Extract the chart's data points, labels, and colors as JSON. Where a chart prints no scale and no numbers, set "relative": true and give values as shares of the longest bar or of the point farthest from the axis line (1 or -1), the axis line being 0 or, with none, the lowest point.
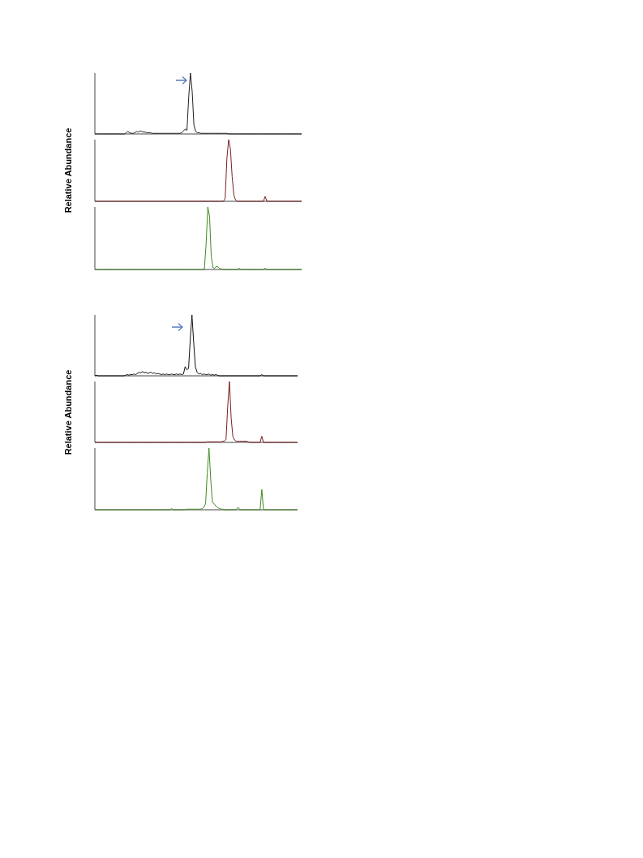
{
  "chart_data": [
    {
      "type": "line",
      "relative": true,
      "legend": false,
      "tick_labels": false,
      "categories": [
        null,
        null,
        null,
        null,
        null,
        null,
        null,
        null,
        null,
        null,
        null,
        null,
        null,
        null,
        null,
        null,
        null,
        null,
        null,
        null,
        null,
        null,
        null,
        null,
        null,
        null,
        null,
        null,
        null,
        null,
        null,
        null,
        null,
        null,
        null,
        null,
        null,
        null,
        null,
        null,
        null,
        null,
        null,
        null,
        null,
        null,
        null,
        null,
        null,
        null,
        null,
        null,
        null,
        null,
        null,
        null,
        null,
        null,
        null,
        null,
        null,
        null,
        null,
        null,
        null,
        null,
        null,
        null,
        null,
        null,
        null,
        null,
        null,
        null,
        null,
        null,
        null,
        null,
        null,
        null,
        null,
        null,
        null,
        null,
        null,
        null,
        null,
        null,
        null,
        null,
        null,
        null,
        null,
        null,
        null,
        null,
        null,
        null,
        null,
        null,
        null,
        null,
        null,
        null,
        null,
        null,
        null,
        null,
        null,
        null,
        null,
        null,
        null,
        null,
        null,
        null,
        null,
        null,
        null,
        null
      ],
      "series": [
        {
          "color": "#222222",
          "values": [
            0,
            0,
            0,
            0,
            0,
            0,
            0,
            0,
            0,
            0,
            0,
            0,
            0,
            0,
            0,
            0,
            0,
            0,
            0.02,
            0.04,
            0.02,
            0.01,
            0.01,
            0.02,
            0.04,
            0.03,
            0.05,
            0.04,
            0.03,
            0.03,
            0.02,
            0.02,
            0.02,
            0.01,
            0.01,
            0.01,
            0.01,
            0.01,
            0.01,
            0.01,
            0.01,
            0.01,
            0.01,
            0.01,
            0.01,
            0.01,
            0.01,
            0.01,
            0.01,
            0.01,
            0.02,
            0.05,
            0.08,
            0.06,
            0.6,
            1,
            0.7,
            0.15,
            0.04,
            0.02,
            0.02,
            0.01,
            0.01,
            0.01,
            0.01,
            0.01,
            0.01,
            0.01,
            0.01,
            0.01,
            0.01,
            0.01,
            0.01,
            0.01,
            0.01,
            0.01,
            0.01,
            0,
            0,
            0,
            0,
            0,
            0,
            0,
            0,
            0,
            0,
            0,
            0,
            0,
            0,
            0,
            0,
            0,
            0,
            0,
            0,
            0,
            0,
            0,
            0,
            0,
            0,
            0,
            0,
            0,
            0,
            0,
            0,
            0,
            0,
            0,
            0,
            0,
            0,
            0,
            0,
            0,
            0,
            0
          ]
        }
      ]
    },
    {
      "type": "line",
      "relative": true,
      "legend": false,
      "tick_labels": false,
      "ylabel": "Relative Abundance",
      "categories": [
        null,
        null,
        null,
        null,
        null,
        null,
        null,
        null,
        null,
        null,
        null,
        null,
        null,
        null,
        null,
        null,
        null,
        null,
        null,
        null,
        null,
        null,
        null,
        null,
        null,
        null,
        null,
        null,
        null,
        null,
        null,
        null,
        null,
        null,
        null,
        null,
        null,
        null,
        null,
        null,
        null,
        null,
        null,
        null,
        null,
        null,
        null,
        null,
        null,
        null,
        null,
        null,
        null,
        null,
        null,
        null,
        null,
        null,
        null,
        null,
        null,
        null,
        null,
        null,
        null,
        null,
        null,
        null,
        null,
        null,
        null,
        null,
        null,
        null,
        null,
        null,
        null,
        null,
        null,
        null,
        null,
        null,
        null,
        null,
        null,
        null,
        null,
        null,
        null,
        null,
        null,
        null,
        null,
        null,
        null,
        null,
        null,
        null,
        null,
        null,
        null,
        null,
        null,
        null,
        null,
        null,
        null,
        null,
        null,
        null,
        null,
        null,
        null,
        null,
        null,
        null,
        null,
        null,
        null,
        null
      ],
      "series": [
        {
          "color": "#7a1f1f",
          "values": [
            0,
            0,
            0,
            0,
            0,
            0,
            0,
            0,
            0,
            0,
            0,
            0,
            0,
            0,
            0,
            0,
            0,
            0,
            0,
            0,
            0,
            0,
            0,
            0,
            0,
            0,
            0,
            0,
            0,
            0,
            0,
            0,
            0,
            0,
            0,
            0,
            0,
            0,
            0,
            0,
            0,
            0,
            0,
            0,
            0,
            0,
            0,
            0,
            0,
            0,
            0,
            0,
            0,
            0,
            0,
            0,
            0,
            0,
            0,
            0,
            0,
            0,
            0,
            0,
            0,
            0,
            0,
            0,
            0,
            0,
            0,
            0,
            0,
            0,
            0,
            0.05,
            0.7,
            1,
            0.85,
            0.4,
            0.1,
            0.02,
            0,
            0,
            0,
            0,
            0,
            0,
            0,
            0,
            0,
            0,
            0,
            0,
            0,
            0,
            0,
            0,
            0.08,
            0,
            0,
            0,
            0,
            0,
            0,
            0,
            0,
            0,
            0,
            0,
            0,
            0,
            0,
            0,
            0,
            0,
            0,
            0,
            0,
            0
          ]
        }
      ]
    },
    {
      "type": "line",
      "relative": true,
      "legend": false,
      "tick_labels": false,
      "categories": [
        null,
        null,
        null,
        null,
        null,
        null,
        null,
        null,
        null,
        null,
        null,
        null,
        null,
        null,
        null,
        null,
        null,
        null,
        null,
        null,
        null,
        null,
        null,
        null,
        null,
        null,
        null,
        null,
        null,
        null,
        null,
        null,
        null,
        null,
        null,
        null,
        null,
        null,
        null,
        null,
        null,
        null,
        null,
        null,
        null,
        null,
        null,
        null,
        null,
        null,
        null,
        null,
        null,
        null,
        null,
        null,
        null,
        null,
        null,
        null,
        null,
        null,
        null,
        null,
        null,
        null,
        null,
        null,
        null,
        null,
        null,
        null,
        null,
        null,
        null,
        null,
        null,
        null,
        null,
        null,
        null,
        null,
        null,
        null,
        null,
        null,
        null,
        null,
        null,
        null,
        null,
        null,
        null,
        null,
        null,
        null,
        null,
        null,
        null,
        null,
        null,
        null,
        null,
        null,
        null,
        null,
        null,
        null,
        null,
        null,
        null,
        null,
        null,
        null,
        null,
        null,
        null,
        null,
        null,
        null
      ],
      "series": [
        {
          "color": "#3f8a1f",
          "values": [
            0,
            0,
            0,
            0,
            0,
            0,
            0,
            0,
            0,
            0,
            0,
            0,
            0,
            0,
            0,
            0,
            0,
            0,
            0,
            0,
            0,
            0,
            0,
            0,
            0,
            0,
            0,
            0,
            0,
            0,
            0,
            0,
            0,
            0,
            0,
            0,
            0,
            0,
            0,
            0,
            0,
            0,
            0,
            0,
            0,
            0,
            0,
            0,
            0,
            0,
            0,
            0,
            0,
            0,
            0,
            0,
            0,
            0,
            0,
            0,
            0,
            0,
            0,
            0,
            0.4,
            1,
            0.85,
            0.2,
            0.03,
            0.02,
            0.05,
            0.04,
            0.01,
            0.01,
            0,
            0,
            0,
            0,
            0,
            0,
            0,
            0,
            0,
            0.02,
            0,
            0,
            0,
            0,
            0,
            0,
            0,
            0,
            0,
            0,
            0,
            0,
            0,
            0,
            0.02,
            0,
            0,
            0,
            0,
            0,
            0,
            0,
            0,
            0,
            0,
            0,
            0,
            0,
            0,
            0,
            0,
            0,
            0,
            0,
            0,
            0
          ]
        }
      ]
    },
    {
      "type": "line",
      "relative": true,
      "legend": false,
      "tick_labels": false,
      "categories": [
        null,
        null,
        null,
        null,
        null,
        null,
        null,
        null,
        null,
        null,
        null,
        null,
        null,
        null,
        null,
        null,
        null,
        null,
        null,
        null,
        null,
        null,
        null,
        null,
        null,
        null,
        null,
        null,
        null,
        null,
        null,
        null,
        null,
        null,
        null,
        null,
        null,
        null,
        null,
        null,
        null,
        null,
        null,
        null,
        null,
        null,
        null,
        null,
        null,
        null,
        null,
        null,
        null,
        null,
        null,
        null,
        null,
        null,
        null,
        null,
        null,
        null,
        null,
        null,
        null,
        null,
        null,
        null,
        null,
        null,
        null,
        null,
        null,
        null,
        null,
        null,
        null,
        null,
        null,
        null,
        null,
        null,
        null,
        null,
        null,
        null,
        null,
        null,
        null,
        null,
        null,
        null,
        null,
        null,
        null,
        null,
        null,
        null,
        null,
        null,
        null,
        null,
        null,
        null,
        null,
        null,
        null,
        null,
        null,
        null,
        null,
        null,
        null,
        null,
        null,
        null,
        null,
        null,
        null,
        null
      ],
      "series": [
        {
          "color": "#111111",
          "values": [
            0,
            0.01,
            0,
            0,
            0,
            0,
            0,
            0,
            0,
            0,
            0,
            0,
            0,
            0,
            0,
            0,
            0,
            0,
            0.01,
            0.02,
            0.01,
            0.02,
            0.02,
            0.03,
            0.02,
            0.04,
            0.06,
            0.05,
            0.07,
            0.05,
            0.06,
            0.04,
            0.05,
            0.06,
            0.04,
            0.05,
            0.03,
            0.04,
            0.03,
            0.02,
            0.03,
            0.02,
            0.03,
            0.02,
            0.02,
            0.03,
            0.02,
            0.02,
            0.03,
            0.02,
            0.03,
            0.02,
            0.03,
            0.15,
            0.1,
            0.12,
            0.6,
            1,
            0.55,
            0.15,
            0.06,
            0.03,
            0.04,
            0.02,
            0.03,
            0.02,
            0.02,
            0.03,
            0.01,
            0.02,
            0.01,
            0.02,
            0.01,
            0,
            0,
            0,
            0,
            0,
            0,
            0,
            0,
            0,
            0,
            0,
            0,
            0,
            0,
            0,
            0,
            0,
            0,
            0,
            0,
            0,
            0,
            0,
            0,
            0,
            0.02,
            0,
            0,
            0,
            0,
            0,
            0,
            0,
            0,
            0,
            0,
            0,
            0,
            0,
            0,
            0,
            0,
            0,
            0,
            0,
            0,
            0
          ]
        }
      ]
    },
    {
      "type": "line",
      "relative": true,
      "legend": false,
      "tick_labels": false,
      "ylabel": "Relative Abundance",
      "categories": [
        null,
        null,
        null,
        null,
        null,
        null,
        null,
        null,
        null,
        null,
        null,
        null,
        null,
        null,
        null,
        null,
        null,
        null,
        null,
        null,
        null,
        null,
        null,
        null,
        null,
        null,
        null,
        null,
        null,
        null,
        null,
        null,
        null,
        null,
        null,
        null,
        null,
        null,
        null,
        null,
        null,
        null,
        null,
        null,
        null,
        null,
        null,
        null,
        null,
        null,
        null,
        null,
        null,
        null,
        null,
        null,
        null,
        null,
        null,
        null,
        null,
        null,
        null,
        null,
        null,
        null,
        null,
        null,
        null,
        null,
        null,
        null,
        null,
        null,
        null,
        null,
        null,
        null,
        null,
        null,
        null,
        null,
        null,
        null,
        null,
        null,
        null,
        null,
        null,
        null,
        null,
        null,
        null,
        null,
        null,
        null,
        null,
        null,
        null,
        null,
        null,
        null,
        null,
        null,
        null,
        null,
        null,
        null,
        null,
        null,
        null,
        null,
        null,
        null,
        null,
        null,
        null,
        null,
        null,
        null
      ],
      "series": [
        {
          "color": "#7a1f1f",
          "values": [
            0,
            0,
            0,
            0,
            0,
            0,
            0,
            0,
            0,
            0,
            0,
            0,
            0,
            0,
            0,
            0,
            0,
            0,
            0,
            0,
            0,
            0,
            0,
            0,
            0,
            0,
            0,
            0,
            0,
            0,
            0,
            0,
            0,
            0,
            0,
            0,
            0,
            0,
            0,
            0,
            0,
            0,
            0,
            0,
            0,
            0,
            0,
            0,
            0,
            0,
            0,
            0,
            0,
            0,
            0,
            0,
            0,
            0,
            0,
            0,
            0,
            0,
            0,
            0,
            0,
            0,
            0.01,
            0.01,
            0.01,
            0.01,
            0.01,
            0.01,
            0.01,
            0.01,
            0.01,
            0.02,
            0.02,
            0.05,
            0.6,
            1,
            0.4,
            0.1,
            0.04,
            0.02,
            0.02,
            0.02,
            0.02,
            0.02,
            0.02,
            0.02,
            0.01,
            0,
            0,
            0,
            0,
            0,
            0,
            0,
            0.1,
            0,
            0,
            0,
            0,
            0,
            0,
            0,
            0,
            0,
            0,
            0,
            0,
            0,
            0,
            0,
            0,
            0,
            0,
            0,
            0,
            0
          ]
        }
      ]
    },
    {
      "type": "line",
      "relative": true,
      "legend": false,
      "tick_labels": false,
      "categories": [
        null,
        null,
        null,
        null,
        null,
        null,
        null,
        null,
        null,
        null,
        null,
        null,
        null,
        null,
        null,
        null,
        null,
        null,
        null,
        null,
        null,
        null,
        null,
        null,
        null,
        null,
        null,
        null,
        null,
        null,
        null,
        null,
        null,
        null,
        null,
        null,
        null,
        null,
        null,
        null,
        null,
        null,
        null,
        null,
        null,
        null,
        null,
        null,
        null,
        null,
        null,
        null,
        null,
        null,
        null,
        null,
        null,
        null,
        null,
        null,
        null,
        null,
        null,
        null,
        null,
        null,
        null,
        null,
        null,
        null,
        null,
        null,
        null,
        null,
        null,
        null,
        null,
        null,
        null,
        null,
        null,
        null,
        null,
        null,
        null,
        null,
        null,
        null,
        null,
        null,
        null,
        null,
        null,
        null,
        null,
        null,
        null,
        null,
        null,
        null,
        null,
        null,
        null,
        null,
        null,
        null,
        null,
        null,
        null,
        null,
        null,
        null,
        null,
        null,
        null,
        null,
        null,
        null,
        null,
        null
      ],
      "series": [
        {
          "color": "#3f8a1f",
          "values": [
            0,
            0,
            0,
            0,
            0,
            0,
            0,
            0,
            0,
            0,
            0,
            0,
            0,
            0,
            0,
            0,
            0,
            0,
            0,
            0,
            0,
            0,
            0,
            0,
            0,
            0,
            0,
            0,
            0,
            0,
            0,
            0,
            0,
            0,
            0,
            0,
            0,
            0,
            0,
            0,
            0,
            0,
            0,
            0,
            0,
            0.02,
            0,
            0,
            0,
            0,
            0,
            0,
            0,
            0,
            0.01,
            0.01,
            0.01,
            0.01,
            0.01,
            0.01,
            0.01,
            0.01,
            0.01,
            0.02,
            0.04,
            0.1,
            0.6,
            1,
            0.5,
            0.12,
            0.1,
            0.06,
            0.04,
            0.02,
            0.01,
            0.01,
            0,
            0,
            0,
            0,
            0,
            0,
            0,
            0,
            0.04,
            0.01,
            0,
            0,
            0,
            0,
            0,
            0,
            0,
            0,
            0,
            0,
            0,
            0,
            0.33,
            0,
            0,
            0,
            0,
            0,
            0,
            0,
            0,
            0,
            0,
            0,
            0,
            0,
            0,
            0,
            0,
            0,
            0,
            0,
            0,
            0
          ]
        }
      ]
    }
  ]
}
